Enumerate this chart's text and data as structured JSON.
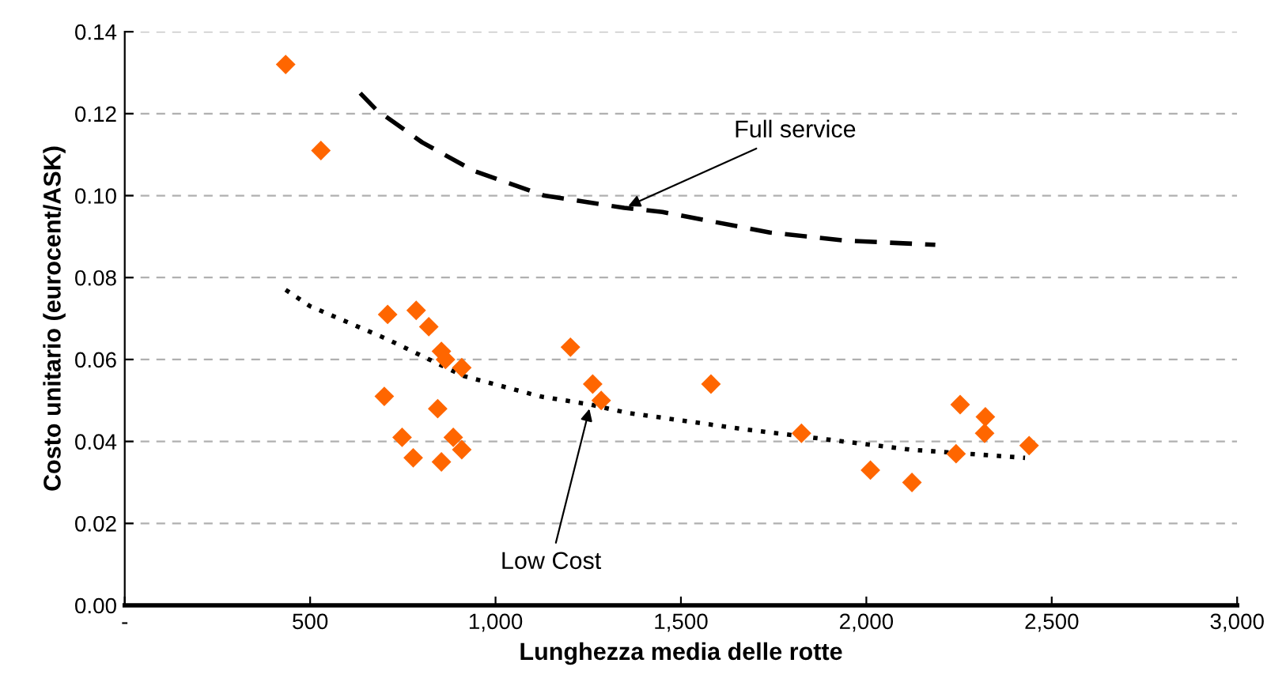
{
  "chart_data": {
    "type": "scatter",
    "xlabel": "Lunghezza media delle rotte",
    "ylabel": "Costo unitario (eurocent/ASK)",
    "xlim": [
      0,
      3000
    ],
    "ylim": [
      0,
      0.14
    ],
    "xticks": [
      {
        "value": 0,
        "label": "-"
      },
      500,
      {
        "value": 1000,
        "label": "1,000"
      },
      {
        "value": 1500,
        "label": "1,500"
      },
      {
        "value": 2000,
        "label": "2,000"
      },
      {
        "value": 2500,
        "label": "2,500"
      },
      {
        "value": 3000,
        "label": "3,000"
      }
    ],
    "yticks": [
      {
        "value": 0,
        "label": "0.00"
      },
      0.02,
      0.04,
      0.06,
      0.08,
      {
        "value": 0.1,
        "label": "0.10"
      },
      0.12,
      0.14
    ],
    "grid": "y",
    "marker": "diamond",
    "series": [
      {
        "color": "#ff6600",
        "x": [
          434,
          529,
          709,
          786,
          820,
          854,
          865,
          909,
          700,
          844,
          748,
          886,
          909,
          778,
          854,
          1202,
          1262,
          1285,
          1581,
          1825,
          2011,
          2123,
          2253,
          2321,
          2319,
          2242,
          2439
        ],
        "values": [
          0.132,
          0.111,
          0.071,
          0.072,
          0.068,
          0.062,
          0.06,
          0.058,
          0.051,
          0.048,
          0.041,
          0.041,
          0.038,
          0.036,
          0.035,
          0.063,
          0.054,
          0.05,
          0.054,
          0.042,
          0.033,
          0.03,
          0.049,
          0.046,
          0.042,
          0.037,
          0.039
        ]
      },
      {
        "type": "line",
        "color": "#000000",
        "line_style": "dashed",
        "marker": "none",
        "x": [
          635,
          678,
          802,
          942,
          1132,
          1347,
          1450,
          1740,
          1946,
          2186
        ],
        "values": [
          0.125,
          0.121,
          0.113,
          0.106,
          0.1,
          0.097,
          0.096,
          0.091,
          0.089,
          0.088
        ]
      },
      {
        "type": "line",
        "color": "#000000",
        "line_style": "dotted",
        "marker": "none",
        "x": [
          434,
          500,
          707,
          913,
          1120,
          1256,
          1354,
          1669,
          2118,
          2428
        ],
        "values": [
          0.077,
          0.073,
          0.065,
          0.056,
          0.051,
          0.049,
          0.047,
          0.043,
          0.038,
          0.036
        ]
      }
    ],
    "annotations": [
      {
        "text": "Full service",
        "x": 1347,
        "y": 0.097
      },
      {
        "text": "Low Cost",
        "x": 1256,
        "y": 0.049
      }
    ]
  }
}
